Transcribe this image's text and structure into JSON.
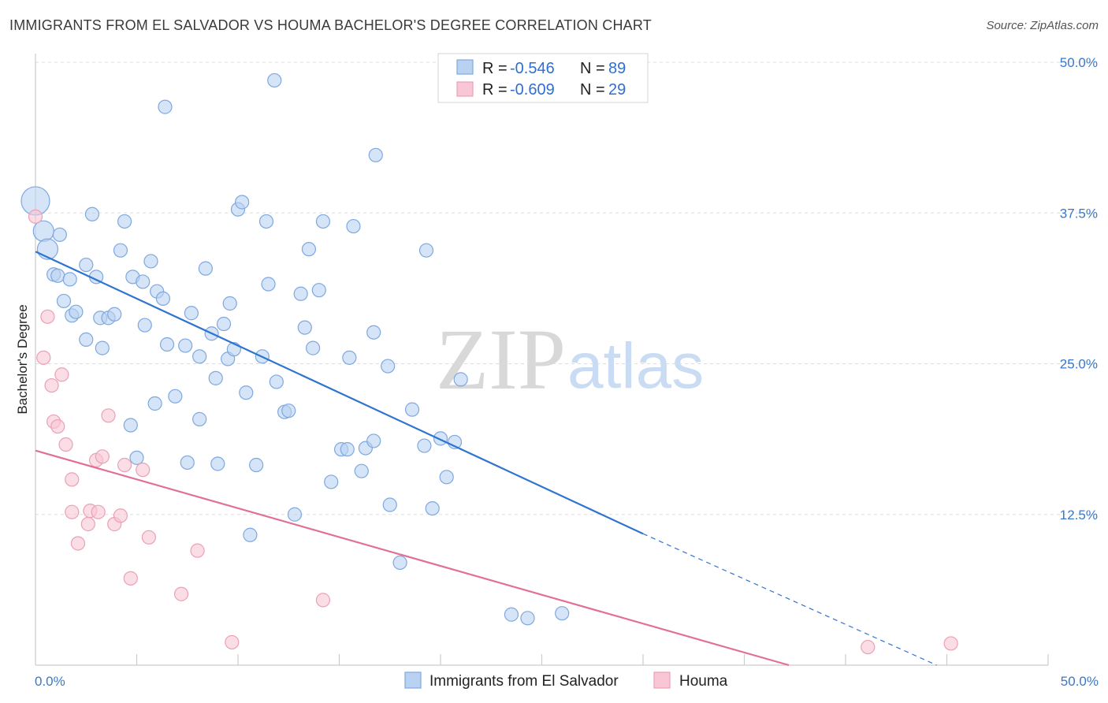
{
  "title": "IMMIGRANTS FROM EL SALVADOR VS HOUMA BACHELOR'S DEGREE CORRELATION CHART",
  "source": "Source: ZipAtlas.com",
  "legend": {
    "rows": [
      {
        "r_label": "R =",
        "r_value": "-0.546",
        "n_label": "N =",
        "n_value": "89"
      },
      {
        "r_label": "R =",
        "r_value": "-0.609",
        "n_label": "N =",
        "n_value": "29"
      }
    ]
  },
  "watermark": {
    "zip": "ZIP",
    "atlas": "atlas"
  },
  "colors": {
    "blue_fill": "#b9d2f2",
    "blue_stroke": "#7ea8e0",
    "blue_line": "#2f74d0",
    "pink_fill": "#f8c6d4",
    "pink_stroke": "#eba0b6",
    "pink_line": "#e0709a",
    "grid": "#dddddd",
    "tick_text": "#3a78c8"
  },
  "chart_data": {
    "type": "scatter",
    "title": "IMMIGRANTS FROM EL SALVADOR VS HOUMA BACHELOR'S DEGREE CORRELATION CHART",
    "xlabel": "",
    "ylabel": "Bachelor's Degree",
    "xlim": [
      0,
      50
    ],
    "ylim": [
      0,
      50
    ],
    "x_tick_labels": [
      "0.0%",
      "50.0%"
    ],
    "y_tick_labels": [
      "12.5%",
      "25.0%",
      "37.5%",
      "50.0%"
    ],
    "y_tick_values": [
      12.5,
      25.0,
      37.5,
      50.0
    ],
    "legend_position": "top-center",
    "series": [
      {
        "name": "Immigrants from El Salvador",
        "color": "#b9d2f2",
        "trend": {
          "x": [
            0.0,
            30.0
          ],
          "y": [
            34.3,
            10.9
          ],
          "dashed_to": [
            44.5,
            0.0
          ]
        },
        "points": [
          {
            "x": 0.0,
            "y": 38.5,
            "s": 3
          },
          {
            "x": 0.4,
            "y": 36.0,
            "s": 2
          },
          {
            "x": 0.6,
            "y": 34.5,
            "s": 2
          },
          {
            "x": 1.2,
            "y": 35.7
          },
          {
            "x": 0.9,
            "y": 32.4
          },
          {
            "x": 1.1,
            "y": 32.3
          },
          {
            "x": 1.7,
            "y": 32.0
          },
          {
            "x": 1.4,
            "y": 30.2
          },
          {
            "x": 1.8,
            "y": 29.0
          },
          {
            "x": 2.0,
            "y": 29.3
          },
          {
            "x": 2.8,
            "y": 37.4
          },
          {
            "x": 3.0,
            "y": 32.2
          },
          {
            "x": 2.5,
            "y": 33.2
          },
          {
            "x": 3.2,
            "y": 28.8
          },
          {
            "x": 3.6,
            "y": 28.8
          },
          {
            "x": 3.9,
            "y": 29.1
          },
          {
            "x": 2.5,
            "y": 27.0
          },
          {
            "x": 3.3,
            "y": 26.3
          },
          {
            "x": 4.2,
            "y": 34.4
          },
          {
            "x": 4.4,
            "y": 36.8
          },
          {
            "x": 4.8,
            "y": 32.2
          },
          {
            "x": 5.3,
            "y": 31.8
          },
          {
            "x": 5.7,
            "y": 33.5
          },
          {
            "x": 5.4,
            "y": 28.2
          },
          {
            "x": 6.0,
            "y": 31.0
          },
          {
            "x": 6.3,
            "y": 30.4
          },
          {
            "x": 6.5,
            "y": 26.6
          },
          {
            "x": 4.7,
            "y": 19.9
          },
          {
            "x": 5.0,
            "y": 17.2
          },
          {
            "x": 5.9,
            "y": 21.7
          },
          {
            "x": 6.4,
            "y": 46.3
          },
          {
            "x": 6.9,
            "y": 22.3
          },
          {
            "x": 7.4,
            "y": 26.5
          },
          {
            "x": 7.5,
            "y": 16.8
          },
          {
            "x": 7.7,
            "y": 29.2
          },
          {
            "x": 8.1,
            "y": 25.6
          },
          {
            "x": 8.1,
            "y": 20.4
          },
          {
            "x": 8.4,
            "y": 32.9
          },
          {
            "x": 8.7,
            "y": 27.5
          },
          {
            "x": 8.9,
            "y": 23.8
          },
          {
            "x": 9.0,
            "y": 16.7
          },
          {
            "x": 9.3,
            "y": 28.3
          },
          {
            "x": 9.5,
            "y": 25.4
          },
          {
            "x": 9.6,
            "y": 30.0
          },
          {
            "x": 9.8,
            "y": 26.2
          },
          {
            "x": 10.0,
            "y": 37.8
          },
          {
            "x": 10.2,
            "y": 38.4
          },
          {
            "x": 10.4,
            "y": 22.6
          },
          {
            "x": 10.6,
            "y": 10.8
          },
          {
            "x": 10.9,
            "y": 16.6
          },
          {
            "x": 11.2,
            "y": 25.6
          },
          {
            "x": 11.4,
            "y": 36.8
          },
          {
            "x": 11.5,
            "y": 31.6
          },
          {
            "x": 11.9,
            "y": 23.5
          },
          {
            "x": 11.8,
            "y": 48.5
          },
          {
            "x": 12.3,
            "y": 21.0
          },
          {
            "x": 12.5,
            "y": 21.1
          },
          {
            "x": 12.8,
            "y": 12.5
          },
          {
            "x": 13.1,
            "y": 30.8
          },
          {
            "x": 13.3,
            "y": 28.0
          },
          {
            "x": 13.5,
            "y": 34.5
          },
          {
            "x": 13.7,
            "y": 26.3
          },
          {
            "x": 14.0,
            "y": 31.1
          },
          {
            "x": 14.2,
            "y": 36.8
          },
          {
            "x": 14.6,
            "y": 15.2
          },
          {
            "x": 15.1,
            "y": 17.9
          },
          {
            "x": 15.4,
            "y": 17.9
          },
          {
            "x": 15.5,
            "y": 25.5
          },
          {
            "x": 15.7,
            "y": 36.4
          },
          {
            "x": 16.1,
            "y": 16.1
          },
          {
            "x": 16.3,
            "y": 18.0
          },
          {
            "x": 16.7,
            "y": 18.6
          },
          {
            "x": 16.7,
            "y": 27.6
          },
          {
            "x": 16.8,
            "y": 42.3
          },
          {
            "x": 17.5,
            "y": 13.3
          },
          {
            "x": 17.4,
            "y": 24.8
          },
          {
            "x": 18.0,
            "y": 8.5
          },
          {
            "x": 18.6,
            "y": 21.2
          },
          {
            "x": 19.2,
            "y": 18.2
          },
          {
            "x": 19.3,
            "y": 34.4
          },
          {
            "x": 19.6,
            "y": 13.0
          },
          {
            "x": 20.0,
            "y": 18.8
          },
          {
            "x": 20.3,
            "y": 15.6
          },
          {
            "x": 20.7,
            "y": 18.5
          },
          {
            "x": 21.0,
            "y": 23.7
          },
          {
            "x": 23.5,
            "y": 4.2
          },
          {
            "x": 24.3,
            "y": 3.9
          },
          {
            "x": 26.0,
            "y": 4.3
          }
        ]
      },
      {
        "name": "Houma",
        "color": "#f8c6d4",
        "trend": {
          "x": [
            0.0,
            37.2
          ],
          "y": [
            17.8,
            0.0
          ]
        },
        "points": [
          {
            "x": 0.0,
            "y": 37.2
          },
          {
            "x": 0.6,
            "y": 28.9
          },
          {
            "x": 0.4,
            "y": 25.5
          },
          {
            "x": 0.8,
            "y": 23.2
          },
          {
            "x": 1.3,
            "y": 24.1
          },
          {
            "x": 0.9,
            "y": 20.2
          },
          {
            "x": 1.1,
            "y": 19.8
          },
          {
            "x": 1.5,
            "y": 18.3
          },
          {
            "x": 1.8,
            "y": 15.4
          },
          {
            "x": 1.8,
            "y": 12.7
          },
          {
            "x": 2.1,
            "y": 10.1
          },
          {
            "x": 2.6,
            "y": 11.7
          },
          {
            "x": 2.7,
            "y": 12.8
          },
          {
            "x": 3.0,
            "y": 17.0
          },
          {
            "x": 3.1,
            "y": 12.7
          },
          {
            "x": 3.3,
            "y": 17.3
          },
          {
            "x": 3.6,
            "y": 20.7
          },
          {
            "x": 3.9,
            "y": 11.7
          },
          {
            "x": 4.2,
            "y": 12.4
          },
          {
            "x": 4.4,
            "y": 16.6
          },
          {
            "x": 4.7,
            "y": 7.2
          },
          {
            "x": 5.3,
            "y": 16.2
          },
          {
            "x": 5.6,
            "y": 10.6
          },
          {
            "x": 7.2,
            "y": 5.9
          },
          {
            "x": 8.0,
            "y": 9.5
          },
          {
            "x": 9.7,
            "y": 1.9
          },
          {
            "x": 14.2,
            "y": 5.4
          },
          {
            "x": 41.1,
            "y": 1.5
          },
          {
            "x": 45.2,
            "y": 1.8
          }
        ]
      }
    ]
  }
}
